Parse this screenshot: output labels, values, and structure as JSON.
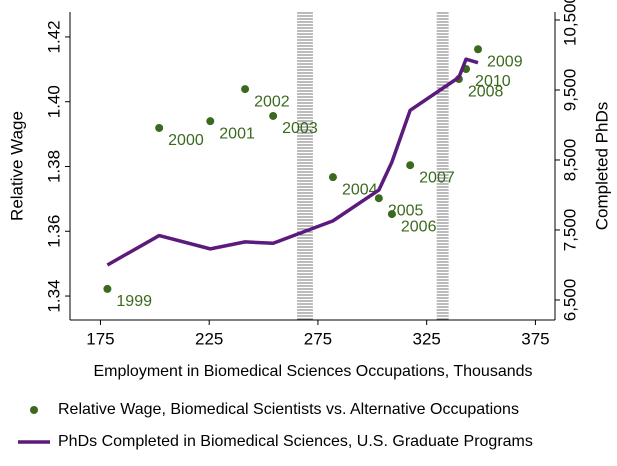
{
  "chart_data": {
    "type": "scatter",
    "xlabel": "Employment in Biomedical Sciences Occupations, Thousands",
    "ylabel": "Relative Wage",
    "y2label": "Completed PhDs",
    "xlim": [
      161,
      384
    ],
    "xticks": [
      175,
      225,
      275,
      325,
      375
    ],
    "ylim": [
      1.3326,
      1.4277
    ],
    "yticks": [
      1.34,
      1.36,
      1.38,
      {
        "value": 1.4,
        "label": "1.40"
      },
      1.42
    ],
    "y2lim": [
      6214,
      10614
    ],
    "y2ticks": [
      {
        "value": 6500,
        "label": "6,500"
      },
      {
        "value": 7500,
        "label": "7,500"
      },
      {
        "value": 8500,
        "label": "8,500"
      },
      {
        "value": 9500,
        "label": "9,500"
      },
      {
        "value": 10500,
        "label": "10,500"
      }
    ],
    "bands": [
      [
        265.4,
        272.7
      ],
      [
        329.6,
        335.1
      ]
    ],
    "series": [
      {
        "name": "Relative Wage, Biomedical Scientists vs. Alternative Occupations",
        "type": "scatter",
        "color": "#3b6a1e",
        "point_labels": [
          "1999",
          "2000",
          "2001",
          "2002",
          "2003",
          "2004",
          "2005",
          "2006",
          "2007",
          "2008",
          "2009",
          "2010"
        ],
        "x": [
          178.2,
          202,
          225.5,
          241.5,
          254.4,
          281.9,
          303,
          309,
          317.4,
          339.8,
          348.6,
          343.1
        ],
        "values": [
          1.3422,
          1.3919,
          1.394,
          1.4039,
          1.3956,
          1.3767,
          1.3702,
          1.3653,
          1.3804,
          1.407,
          1.4162,
          1.4101
        ]
      },
      {
        "name": "PhDs Completed in Biomedical Sciences, U.S. Graduate Programs",
        "type": "line",
        "axis": "y2",
        "color": "#5b1a7c",
        "x": [
          178.2,
          202,
          225.5,
          241.5,
          254.4,
          281.9,
          303,
          309,
          317.4,
          339.8,
          343.1,
          348.6
        ],
        "values": [
          7000,
          7420,
          7230,
          7330,
          7310,
          7630,
          8070,
          8470,
          9210,
          9680,
          9940,
          9890
        ]
      }
    ],
    "legend": "bottom"
  }
}
